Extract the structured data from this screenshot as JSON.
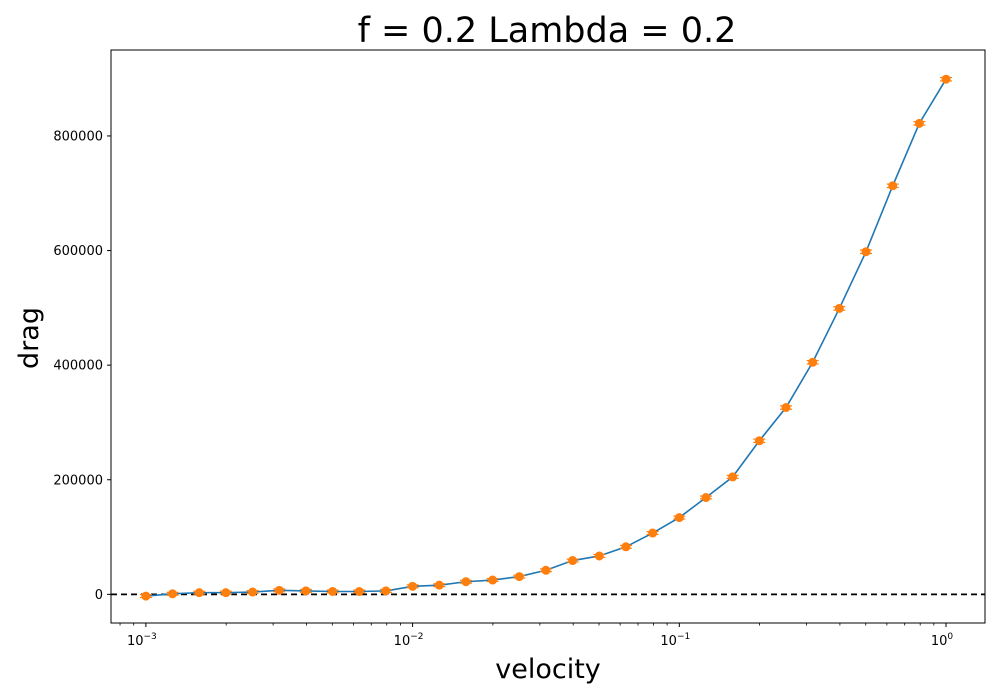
{
  "chart_data": {
    "type": "line",
    "title": "f = 0.2 Lambda = 0.2",
    "xlabel": "velocity",
    "ylabel": "drag",
    "xscale": "log",
    "xlim": [
      0.00074,
      1.4
    ],
    "ylim": [
      -50000,
      950000
    ],
    "x_ticks": [
      {
        "value": 0.001,
        "base": "10",
        "exp": "−3"
      },
      {
        "value": 0.01,
        "base": "10",
        "exp": "−2"
      },
      {
        "value": 0.1,
        "base": "10",
        "exp": "−1"
      },
      {
        "value": 1,
        "base": "10",
        "exp": "0"
      }
    ],
    "y_ticks": [
      {
        "value": 0,
        "label": "0"
      },
      {
        "value": 200000,
        "label": "200000"
      },
      {
        "value": 400000,
        "label": "400000"
      },
      {
        "value": 600000,
        "label": "600000"
      },
      {
        "value": 800000,
        "label": "800000"
      }
    ],
    "reference_line": {
      "y": 0,
      "style": "dashed",
      "color": "#000000"
    },
    "grid": false,
    "colors": {
      "line": "#1f77b4",
      "marker": "#ff7f0e",
      "reference": "#000000"
    },
    "series": [
      {
        "x": [
          0.001,
          0.001259,
          0.001585,
          0.001995,
          0.002512,
          0.003162,
          0.003981,
          0.005012,
          0.00631,
          0.007943,
          0.01,
          0.01259,
          0.01585,
          0.01995,
          0.02512,
          0.03162,
          0.03981,
          0.05012,
          0.0631,
          0.07943,
          0.1,
          0.1259,
          0.1585,
          0.1995,
          0.2512,
          0.3162,
          0.3981,
          0.5012,
          0.631,
          0.7943,
          1.0
        ],
        "y": [
          -3000,
          1000,
          3000,
          3000,
          4000,
          7000,
          6000,
          5000,
          5000,
          6000,
          14000,
          16000,
          22000,
          25000,
          31000,
          42000,
          59000,
          67000,
          83000,
          107000,
          134000,
          169000,
          205000,
          268000,
          326000,
          405000,
          499000,
          598000,
          713000,
          822000,
          899000
        ],
        "yerr": [
          2500,
          2500,
          2500,
          2500,
          2500,
          2500,
          2500,
          2500,
          2500,
          2500,
          2500,
          2500,
          2500,
          2500,
          2500,
          2500,
          2500,
          2500,
          2500,
          2500,
          2500,
          2500,
          2500,
          3000,
          3000,
          3000,
          3000,
          3000,
          3000,
          3000,
          3000
        ]
      }
    ]
  }
}
